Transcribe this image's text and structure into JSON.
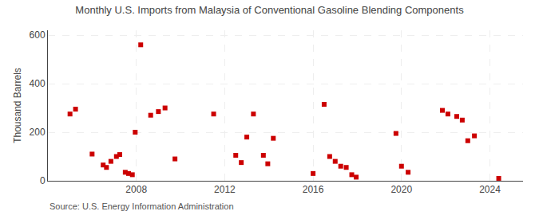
{
  "chart_data": {
    "type": "scatter",
    "title": "Monthly U.S. Imports from Malaysia of Conventional Gasoline Blending Components",
    "ylabel": "Thousand Barrels",
    "annotations": [
      "Source: U.S. Energy Information Administration"
    ],
    "color": "#CC0000",
    "marker": "square",
    "grid": true,
    "xlim": [
      2004.0,
      2025.5
    ],
    "ylim": [
      0,
      620
    ],
    "xticks": [
      2008,
      2012,
      2016,
      2020,
      2024
    ],
    "yticks": [
      0,
      200,
      400,
      600
    ],
    "x": [
      2005.0,
      2005.25,
      2006.0,
      2006.5,
      2006.65,
      2006.85,
      2007.1,
      2007.25,
      2007.5,
      2007.65,
      2007.82,
      2007.95,
      2008.2,
      2008.65,
      2009.0,
      2009.3,
      2009.75,
      2011.5,
      2012.5,
      2012.75,
      2013.0,
      2013.3,
      2013.75,
      2013.95,
      2014.2,
      2016.0,
      2016.5,
      2016.75,
      2017.0,
      2017.25,
      2017.5,
      2017.75,
      2017.95,
      2019.75,
      2020.0,
      2020.3,
      2021.85,
      2022.1,
      2022.5,
      2022.75,
      2023.0,
      2023.3,
      2024.4
    ],
    "values": [
      275,
      295,
      110,
      65,
      55,
      80,
      100,
      108,
      35,
      30,
      25,
      200,
      560,
      270,
      285,
      300,
      90,
      275,
      105,
      75,
      180,
      275,
      105,
      70,
      175,
      30,
      315,
      100,
      80,
      60,
      55,
      25,
      15,
      195,
      60,
      35,
      290,
      275,
      265,
      250,
      165,
      185,
      10
    ]
  }
}
